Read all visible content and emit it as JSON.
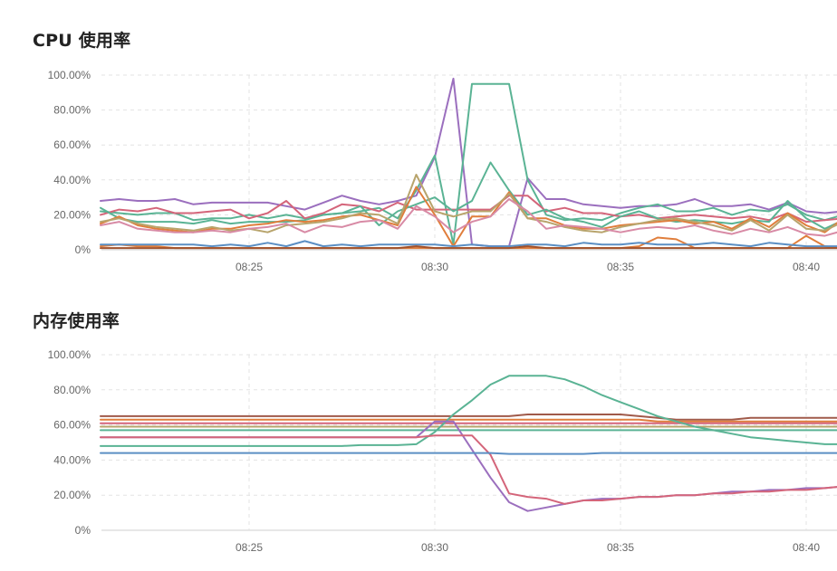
{
  "charts": [
    {
      "title": "CPU 使用率",
      "chart_data": {
        "type": "line",
        "title": "CPU 使用率",
        "xlabel": "",
        "ylabel": "",
        "xlim": [
          "08:21",
          "08:41"
        ],
        "ylim": [
          0,
          100
        ],
        "y_ticks": [
          "0%",
          "20.00%",
          "40.00%",
          "60.00%",
          "80.00%",
          "100.00%"
        ],
        "y_tick_values": [
          0,
          20,
          40,
          60,
          80,
          100
        ],
        "x_ticks": [
          "08:25",
          "08:30",
          "08:35",
          "08:40"
        ],
        "x_tick_values": [
          4,
          9,
          14,
          19
        ],
        "grid": true,
        "x": [
          0,
          0.5,
          1,
          1.5,
          2,
          2.5,
          3,
          3.5,
          4,
          4.5,
          5,
          5.5,
          6,
          6.5,
          7,
          7.5,
          8,
          8.5,
          9,
          9.5,
          10,
          10.5,
          11,
          11.5,
          12,
          12.5,
          13,
          13.5,
          14,
          14.5,
          15,
          15.5,
          16,
          16.5,
          17,
          17.5,
          18,
          18.5,
          19,
          19.5,
          20
        ],
        "series": [
          {
            "color": "#9b6fbe",
            "values": [
              28,
              29,
              28,
              28,
              29,
              26,
              27,
              27,
              27,
              27,
              25,
              23,
              27,
              31,
              28,
              26,
              28,
              31,
              53,
              98,
              3,
              2,
              2,
              41,
              29,
              29,
              26,
              25,
              24,
              25,
              25,
              26,
              29,
              25,
              25,
              26,
              23,
              27,
              22,
              21,
              22
            ]
          },
          {
            "color": "#5ab394",
            "values": [
              22,
              21,
              20,
              21,
              21,
              17,
              18,
              18,
              20,
              18,
              20,
              18,
              20,
              21,
              22,
              24,
              18,
              34,
              54,
              3,
              95,
              95,
              95,
              40,
              20,
              17,
              18,
              17,
              21,
              24,
              26,
              22,
              22,
              24,
              20,
              23,
              22,
              26,
              20,
              17,
              20
            ]
          },
          {
            "color": "#d4657a",
            "values": [
              20,
              23,
              22,
              24,
              21,
              21,
              22,
              23,
              18,
              21,
              28,
              18,
              21,
              26,
              25,
              22,
              27,
              23,
              23,
              23,
              23,
              23,
              31,
              31,
              22,
              24,
              21,
              21,
              19,
              20,
              18,
              19,
              20,
              19,
              18,
              19,
              17,
              21,
              16,
              17,
              18
            ]
          },
          {
            "color": "#5ab394",
            "values": [
              24,
              18,
              16,
              16,
              16,
              15,
              17,
              15,
              16,
              16,
              16,
              17,
              20,
              21,
              25,
              14,
              22,
              26,
              30,
              22,
              28,
              50,
              34,
              20,
              23,
              18,
              16,
              13,
              19,
              22,
              18,
              16,
              17,
              16,
              15,
              17,
              16,
              28,
              18,
              12,
              17
            ]
          },
          {
            "color": "#e07e3c",
            "values": [
              15,
              19,
              14,
              12,
              11,
              10,
              12,
              12,
              14,
              15,
              17,
              16,
              17,
              19,
              20,
              17,
              14,
              36,
              20,
              2,
              19,
              19,
              33,
              18,
              18,
              14,
              12,
              12,
              14,
              15,
              16,
              17,
              15,
              16,
              12,
              18,
              13,
              21,
              14,
              10,
              18
            ]
          },
          {
            "color": "#b8a46c",
            "values": [
              16,
              18,
              15,
              13,
              12,
              11,
              13,
              11,
              12,
              10,
              14,
              15,
              16,
              18,
              21,
              20,
              15,
              43,
              22,
              19,
              22,
              22,
              32,
              18,
              16,
              13,
              11,
              10,
              13,
              15,
              17,
              18,
              16,
              14,
              11,
              17,
              11,
              20,
              12,
              11,
              16
            ]
          },
          {
            "color": "#d88aa5",
            "values": [
              14,
              16,
              12,
              11,
              10,
              10,
              11,
              10,
              12,
              13,
              15,
              10,
              14,
              13,
              16,
              17,
              12,
              25,
              19,
              10,
              16,
              19,
              29,
              22,
              12,
              14,
              13,
              12,
              10,
              12,
              13,
              12,
              14,
              11,
              9,
              12,
              10,
              13,
              9,
              8,
              11
            ]
          },
          {
            "color": "#e07e3c",
            "values": [
              2,
              3,
              2,
              2,
              1,
              1,
              1,
              1,
              1,
              1,
              1,
              1,
              1,
              1,
              1,
              1,
              1,
              1,
              1,
              1,
              1,
              1,
              1,
              1,
              1,
              1,
              1,
              1,
              1,
              2,
              7,
              6,
              1,
              1,
              1,
              1,
              1,
              1,
              8,
              2,
              1
            ]
          },
          {
            "color": "#5b8fc4",
            "values": [
              3,
              3,
              3,
              3,
              3,
              3,
              2,
              3,
              2,
              4,
              2,
              5,
              2,
              3,
              2,
              3,
              3,
              3,
              3,
              2,
              3,
              2,
              2,
              3,
              3,
              2,
              4,
              3,
              3,
              4,
              3,
              3,
              3,
              4,
              3,
              2,
              4,
              3,
              2,
              2,
              2
            ]
          },
          {
            "color": "#a0522d",
            "values": [
              1,
              1,
              1,
              1,
              1,
              1,
              1,
              1,
              1,
              1,
              1,
              1,
              1,
              1,
              1,
              1,
              1,
              2,
              1,
              1,
              1,
              1,
              1,
              2,
              1,
              1,
              1,
              1,
              1,
              1,
              1,
              1,
              1,
              1,
              1,
              1,
              1,
              1,
              1,
              1,
              1
            ]
          }
        ]
      }
    },
    {
      "title": "内存使用率",
      "chart_data": {
        "type": "line",
        "title": "内存使用率",
        "xlabel": "",
        "ylabel": "",
        "xlim": [
          "08:21",
          "08:41"
        ],
        "ylim": [
          0,
          100
        ],
        "y_ticks": [
          "0%",
          "20.00%",
          "40.00%",
          "60.00%",
          "80.00%",
          "100.00%"
        ],
        "y_tick_values": [
          0,
          20,
          40,
          60,
          80,
          100
        ],
        "x_ticks": [
          "08:25",
          "08:30",
          "08:35",
          "08:40"
        ],
        "x_tick_values": [
          4,
          9,
          14,
          19
        ],
        "grid": true,
        "x": [
          0,
          0.5,
          1,
          1.5,
          2,
          2.5,
          3,
          3.5,
          4,
          4.5,
          5,
          5.5,
          6,
          6.5,
          7,
          7.5,
          8,
          8.5,
          9,
          9.5,
          10,
          10.5,
          11,
          11.5,
          12,
          12.5,
          13,
          13.5,
          14,
          14.5,
          15,
          15.5,
          16,
          16.5,
          17,
          17.5,
          18,
          18.5,
          19,
          19.5,
          20
        ],
        "series": [
          {
            "color": "#a05a4a",
            "values": [
              65,
              65,
              65,
              65,
              65,
              65,
              65,
              65,
              65,
              65,
              65,
              65,
              65,
              65,
              65,
              65,
              65,
              65,
              65,
              65,
              65,
              65,
              65,
              66,
              66,
              66,
              66,
              66,
              66,
              65,
              64,
              63,
              63,
              63,
              63,
              64,
              64,
              64,
              64,
              64,
              64
            ]
          },
          {
            "color": "#e07e3c",
            "values": [
              63,
              63,
              63,
              63,
              63,
              63,
              63,
              63,
              63,
              63,
              63,
              63,
              63,
              63,
              63,
              63,
              63,
              63,
              63,
              63,
              63,
              63,
              63,
              63,
              63,
              63,
              63,
              63,
              63,
              63,
              62,
              62,
              62,
              62,
              62,
              62,
              62,
              62,
              62,
              62,
              62
            ]
          },
          {
            "color": "#d4657a",
            "values": [
              61,
              61,
              61,
              61,
              61,
              61,
              61,
              61,
              61,
              61,
              61,
              61,
              61,
              61,
              61,
              61,
              61,
              61,
              61,
              61,
              61,
              61,
              61,
              61,
              61,
              61,
              61,
              61,
              61,
              61,
              61,
              61,
              61,
              61,
              61,
              61,
              61,
              61,
              61,
              61,
              61
            ]
          },
          {
            "color": "#b8a46c",
            "values": [
              59,
              59,
              59,
              59,
              59,
              59,
              59,
              59,
              59,
              59,
              59,
              59,
              59,
              59,
              59,
              59,
              59,
              59,
              59,
              59,
              59,
              59,
              59,
              59,
              59,
              59,
              59,
              59,
              59,
              59,
              59,
              59,
              59,
              59,
              59,
              59,
              59,
              59,
              59,
              59,
              59
            ]
          },
          {
            "color": "#5ab394",
            "values": [
              57,
              57,
              57,
              57,
              57,
              57,
              57,
              57,
              57,
              57,
              57,
              57,
              57,
              57,
              57,
              57,
              57,
              57,
              57,
              57,
              57,
              57,
              57,
              57,
              57,
              57,
              57,
              57,
              57,
              57,
              57,
              57,
              57,
              57,
              57,
              57,
              57,
              57,
              57,
              57,
              57
            ]
          },
          {
            "color": "#5ab394",
            "values": [
              48,
              48,
              48,
              48,
              48,
              48,
              48,
              48,
              48,
              48,
              48,
              48,
              48,
              48,
              48.5,
              48.5,
              48.5,
              49,
              56,
              66,
              74,
              83,
              88,
              88,
              88,
              86,
              82,
              77,
              73,
              69,
              65,
              62,
              59,
              57,
              55,
              53,
              52,
              51,
              50,
              49,
              49
            ]
          },
          {
            "color": "#9b6fbe",
            "values": [
              53,
              53,
              53,
              53,
              53,
              53,
              53,
              53,
              53,
              53,
              53,
              53,
              53,
              53,
              53,
              53,
              53,
              53,
              62,
              62,
              46,
              30,
              16,
              11,
              13,
              15,
              17,
              18,
              18,
              19,
              19,
              20,
              20,
              21,
              22,
              22,
              23,
              23,
              24,
              24,
              25
            ]
          },
          {
            "color": "#d4657a",
            "values": [
              53,
              53,
              53,
              53,
              53,
              53,
              53,
              53,
              53,
              53,
              53,
              53,
              53,
              53,
              53,
              53,
              53,
              53,
              54,
              54,
              54,
              43,
              21,
              19,
              18,
              15,
              17,
              17,
              18,
              19,
              19,
              20,
              20,
              21,
              21,
              22,
              22,
              23,
              23,
              24,
              25
            ]
          },
          {
            "color": "#5b8fc4",
            "values": [
              44,
              44,
              44,
              44,
              44,
              44,
              44,
              44,
              44,
              44,
              44,
              44,
              44,
              44,
              44,
              44,
              44,
              44,
              44,
              44,
              44,
              44,
              43.5,
              43.5,
              43.5,
              43.5,
              43.5,
              44,
              44,
              44,
              44,
              44,
              44,
              44,
              44,
              44,
              44,
              44,
              44,
              44,
              44
            ]
          }
        ]
      }
    }
  ]
}
